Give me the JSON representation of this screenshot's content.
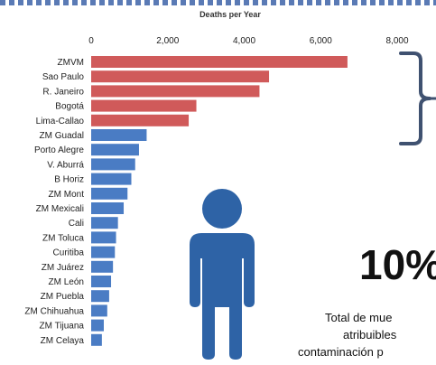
{
  "chart_data": {
    "type": "bar",
    "orientation": "horizontal",
    "title": "Deaths per Year",
    "xlim": [
      0,
      8000
    ],
    "xticks": [
      "0",
      "2,000",
      "4,000",
      "6,000",
      "8,000"
    ],
    "tick_values": [
      0,
      2000,
      4000,
      6000,
      8000
    ],
    "grid": false,
    "categories": [
      "ZMVM",
      "Sao Paulo",
      "R. Janeiro",
      "Bogotá",
      "Lima-Callao",
      "ZM Guadal",
      "Porto Alegre",
      "V. Aburrá",
      "B Horiz",
      "ZM Mont",
      "ZM Mexicali",
      "Cali",
      "ZM Toluca",
      "Curitiba",
      "ZM Juárez",
      "ZM León",
      "ZM Puebla",
      "ZM Chihuahua",
      "ZM Tijuana",
      "ZM Celaya"
    ],
    "values": [
      6700,
      4650,
      4400,
      2750,
      2550,
      1450,
      1250,
      1150,
      1050,
      950,
      850,
      700,
      650,
      620,
      570,
      520,
      470,
      420,
      330,
      280
    ],
    "bar_colors": [
      "#d05a5a",
      "#d05a5a",
      "#d05a5a",
      "#d05a5a",
      "#d05a5a",
      "#4a7cc4",
      "#4a7cc4",
      "#4a7cc4",
      "#4a7cc4",
      "#4a7cc4",
      "#4a7cc4",
      "#4a7cc4",
      "#4a7cc4",
      "#4a7cc4",
      "#4a7cc4",
      "#4a7cc4",
      "#4a7cc4",
      "#4a7cc4",
      "#4a7cc4",
      "#4a7cc4"
    ]
  },
  "callout": {
    "big_number": "10%",
    "line1": "Total de mue",
    "line2": "atribuibles",
    "line3": "contaminación p"
  },
  "colors": {
    "highlight_bar": "#d05a5a",
    "other_bar": "#4a7cc4",
    "person_icon": "#2e63a6",
    "bracket": "#3f5170"
  },
  "icons": {
    "person": "person-icon",
    "bracket": "curly-bracket"
  }
}
